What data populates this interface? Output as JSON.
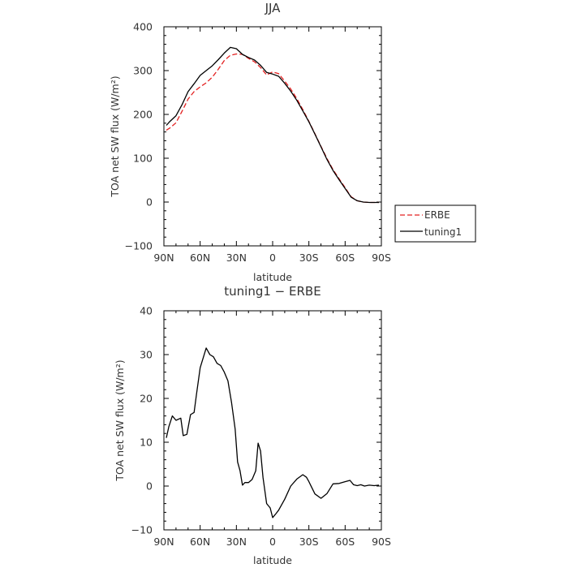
{
  "chart_data": [
    {
      "type": "line",
      "title": "JJA",
      "xlabel": "latitude",
      "ylabel": "TOA net SW flux (W/m²)",
      "xlim": [
        90,
        -90
      ],
      "ylim": [
        -100,
        400
      ],
      "xticks": [
        90,
        60,
        30,
        0,
        -30,
        -60,
        -90
      ],
      "xtick_labels": [
        "90N",
        "60N",
        "30N",
        "0",
        "30S",
        "60S",
        "90S"
      ],
      "yticks": [
        -100,
        0,
        100,
        200,
        300,
        400
      ],
      "ytick_labels": [
        "−100",
        "0",
        "100",
        "200",
        "300",
        "400"
      ],
      "grid": false,
      "legend_position": "outside-right",
      "x": [
        88,
        85,
        80,
        75,
        70,
        65,
        60,
        55,
        50,
        45,
        40,
        35,
        30,
        25,
        20,
        15,
        10,
        5,
        0,
        -5,
        -10,
        -15,
        -20,
        -25,
        -30,
        -35,
        -40,
        -45,
        -50,
        -55,
        -60,
        -63,
        -65,
        -70,
        -75,
        -80,
        -85,
        -88
      ],
      "series": [
        {
          "name": "ERBE",
          "color": "#e32020",
          "dash": "dashed",
          "values": [
            164,
            169,
            181,
            207,
            235,
            252,
            263,
            272,
            285,
            303,
            323,
            335,
            338,
            337,
            328,
            320,
            307,
            290,
            297,
            293,
            276,
            258,
            236,
            211,
            184,
            156,
            127,
            99,
            74,
            53,
            33,
            20,
            12,
            3,
            0,
            -1,
            -1,
            -1
          ]
        },
        {
          "name": "tuning1",
          "color": "#000000",
          "dash": "solid",
          "values": [
            175,
            184,
            197,
            222,
            252,
            270,
            289,
            300,
            311,
            325,
            340,
            353,
            350,
            337,
            330,
            324,
            312,
            296,
            292,
            287,
            271,
            253,
            232,
            208,
            183,
            155,
            126,
            97,
            72,
            51,
            31,
            19,
            11,
            3,
            0,
            -1,
            -1,
            -1
          ]
        }
      ]
    },
    {
      "type": "line",
      "title": "tuning1 − ERBE",
      "xlabel": "latitude",
      "ylabel": "TOA net SW flux (W/m²)",
      "xlim": [
        90,
        -90
      ],
      "ylim": [
        -10,
        40
      ],
      "xticks": [
        90,
        60,
        30,
        0,
        -30,
        -60,
        -90
      ],
      "xtick_labels": [
        "90N",
        "60N",
        "30N",
        "0",
        "30S",
        "60S",
        "90S"
      ],
      "yticks": [
        -10,
        0,
        10,
        20,
        30,
        40
      ],
      "ytick_labels": [
        "−10",
        "0",
        "10",
        "20",
        "30",
        "40"
      ],
      "grid": false,
      "x": [
        88,
        86,
        83,
        80,
        76,
        74,
        71,
        68,
        65,
        63,
        60,
        55,
        52,
        49,
        46,
        43,
        40,
        37,
        34,
        31,
        29,
        27,
        25,
        23,
        20,
        17,
        14,
        12,
        10,
        8,
        5,
        2,
        0,
        -3,
        -5,
        -10,
        -15,
        -20,
        -25,
        -28,
        -30,
        -35,
        -40,
        -45,
        -50,
        -55,
        -60,
        -64,
        -67,
        -70,
        -73,
        -76,
        -80,
        -84,
        -88
      ],
      "series": [
        {
          "name": "tuning1",
          "color": "#000000",
          "dash": "solid",
          "values": [
            11,
            13.5,
            16,
            15,
            15.5,
            11.5,
            11.8,
            16.3,
            16.8,
            21,
            27,
            31.5,
            30,
            29.5,
            28,
            27.5,
            26,
            24,
            19,
            13,
            5.5,
            3.5,
            0.2,
            0.8,
            0.8,
            1.5,
            3.5,
            9.8,
            8,
            2,
            -4,
            -5,
            -7.2,
            -6.2,
            -5.5,
            -3,
            0,
            1.6,
            2.6,
            2,
            1,
            -1.8,
            -2.8,
            -1.7,
            0.5,
            0.6,
            1,
            1.3,
            0.3,
            0.1,
            0.3,
            0,
            0.2,
            0.1,
            0.2
          ]
        }
      ]
    }
  ]
}
